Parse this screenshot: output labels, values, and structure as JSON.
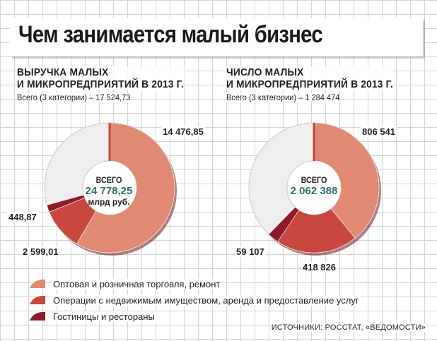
{
  "title": "Чем занимается малый бизнес",
  "colors": {
    "trade": "#e08a73",
    "realty": "#c8473e",
    "hotels": "#8e1a2a",
    "remainder": "#efefef",
    "accent_value": "#2f6f6a"
  },
  "legend": [
    {
      "label": "Оптовая и розничная торговля, ремонт",
      "color": "#e08a73"
    },
    {
      "label": "Операции с недвижимым имуществом, аренда и предоставление услуг",
      "color": "#c8473e"
    },
    {
      "label": "Гостиницы и рестораны",
      "color": "#8e1a2a"
    }
  ],
  "source": "ИСТОЧНИКИ: РОССТАТ, «ВЕДОМОСТИ»",
  "chart_data": [
    {
      "type": "pie",
      "title_line1": "ВЫРУЧКА МАЛЫХ",
      "title_line2": "И МИКРОПРЕДПРИЯТИЙ В 2013 Г.",
      "subtitle": "Всего (3 категории) – 17 524,73",
      "total": 24778.25,
      "center_label": "ВСЕГО",
      "center_value": "24 778,25",
      "center_unit": "млрд руб.",
      "categories": [
        "Оптовая и розничная торговля, ремонт",
        "Операции с недвижимым имуществом, аренда и предоставление услуг",
        "Гостиницы и рестораны"
      ],
      "values": [
        14476.85,
        2599.01,
        448.87
      ],
      "value_labels": [
        "14 476,85",
        "2 599,01",
        "448,87"
      ]
    },
    {
      "type": "pie",
      "title_line1": "ЧИСЛО МАЛЫХ",
      "title_line2": "И МИКРОПРЕДПРИЯТИЙ В 2013 Г.",
      "subtitle": "Всего (3 категории) – 1 284 474",
      "total": 2062388,
      "center_label": "ВСЕГО",
      "center_value": "2 062 388",
      "center_unit": "",
      "categories": [
        "Оптовая и розничная торговля, ремонт",
        "Операции с недвижимым имуществом, аренда и предоставление услуг",
        "Гостиницы и рестораны"
      ],
      "values": [
        806541,
        418826,
        59107
      ],
      "value_labels": [
        "806 541",
        "418 826",
        "59 107"
      ]
    }
  ]
}
